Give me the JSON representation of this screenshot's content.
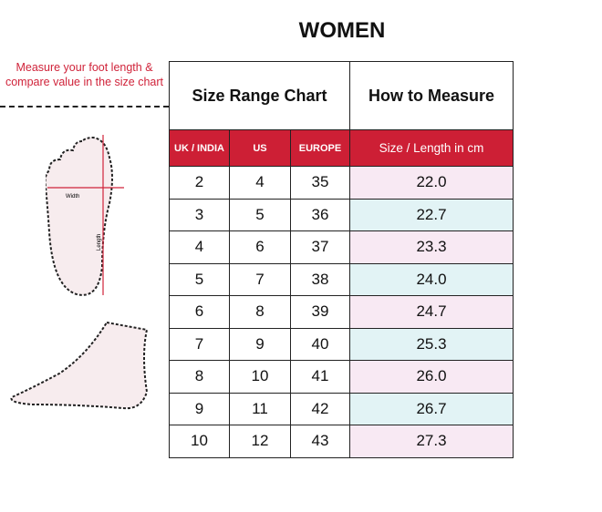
{
  "title": "WOMEN",
  "instruction": "Measure your foot length & compare value in the size chart",
  "foot_labels": {
    "width": "Width",
    "length": "Length"
  },
  "table": {
    "group_headers": [
      "Size Range Chart",
      "How to Measure"
    ],
    "columns": [
      "UK / INDIA",
      "US",
      "EUROPE",
      "Size / Length in cm"
    ],
    "rows": [
      [
        "2",
        "4",
        "35",
        "22.0"
      ],
      [
        "3",
        "5",
        "36",
        "22.7"
      ],
      [
        "4",
        "6",
        "37",
        "23.3"
      ],
      [
        "5",
        "7",
        "38",
        "24.0"
      ],
      [
        "6",
        "8",
        "39",
        "24.7"
      ],
      [
        "7",
        "9",
        "40",
        "25.3"
      ],
      [
        "8",
        "10",
        "41",
        "26.0"
      ],
      [
        "9",
        "11",
        "42",
        "26.7"
      ],
      [
        "10",
        "12",
        "43",
        "27.3"
      ]
    ]
  },
  "colors": {
    "accent": "#cd1f35",
    "row_pink": "#f8e9f3",
    "row_blue": "#e2f3f5"
  }
}
